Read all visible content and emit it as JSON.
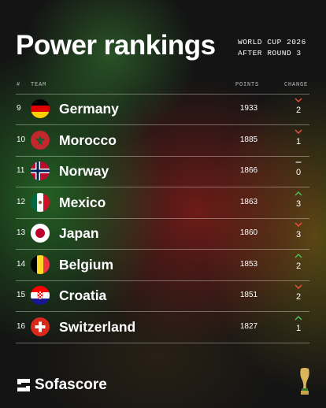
{
  "header": {
    "title": "Power rankings",
    "subtitle": [
      "WORLD CUP 2026",
      "AFTER ROUND 3"
    ]
  },
  "table": {
    "columns": [
      "#",
      "TEAM",
      "POINTS",
      "CHANGE"
    ],
    "rows": [
      {
        "rank": 9,
        "team": "Germany",
        "points": 1933,
        "trend": "down",
        "change": 2
      },
      {
        "rank": 10,
        "team": "Morocco",
        "points": 1885,
        "trend": "down",
        "change": 1
      },
      {
        "rank": 11,
        "team": "Norway",
        "points": 1866,
        "trend": "none",
        "change": 0
      },
      {
        "rank": 12,
        "team": "Mexico",
        "points": 1863,
        "trend": "up",
        "change": 3
      },
      {
        "rank": 13,
        "team": "Japan",
        "points": 1860,
        "trend": "down",
        "change": 3
      },
      {
        "rank": 14,
        "team": "Belgium",
        "points": 1853,
        "trend": "up",
        "change": 2
      },
      {
        "rank": 15,
        "team": "Croatia",
        "points": 1851,
        "trend": "down",
        "change": 2
      },
      {
        "rank": 16,
        "team": "Switzerland",
        "points": 1827,
        "trend": "up",
        "change": 1
      }
    ]
  },
  "footer": {
    "brand": "Sofascore"
  }
}
